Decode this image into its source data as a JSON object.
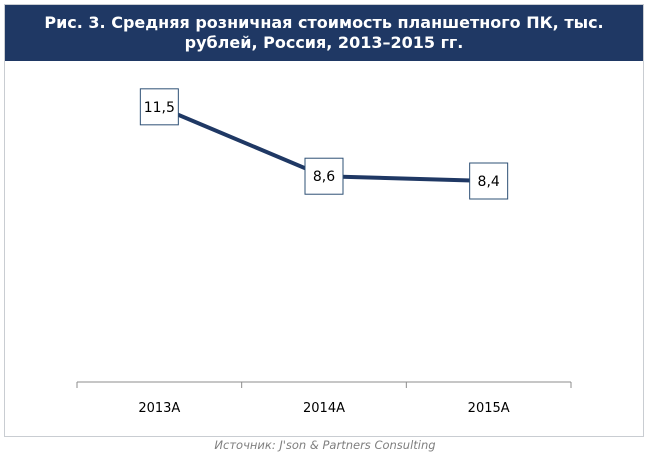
{
  "header": {
    "title": "Рис. 3. Средняя розничная стоимость планшетного ПК, тыс. рублей, Россия, 2013–2015 гг."
  },
  "colors": {
    "header_bg": "#1f3864",
    "line": "#1f3864"
  },
  "chart_data": {
    "type": "line",
    "categories": [
      "2013А",
      "2014А",
      "2015А"
    ],
    "values": [
      11.5,
      8.6,
      8.4
    ],
    "value_labels": [
      "11,5",
      "8,6",
      "8,4"
    ],
    "title": "",
    "xlabel": "",
    "ylabel": "",
    "ylim": [
      0,
      14
    ],
    "grid": false,
    "legend": "none"
  },
  "source": "Источник: J'son & Partners Consulting"
}
